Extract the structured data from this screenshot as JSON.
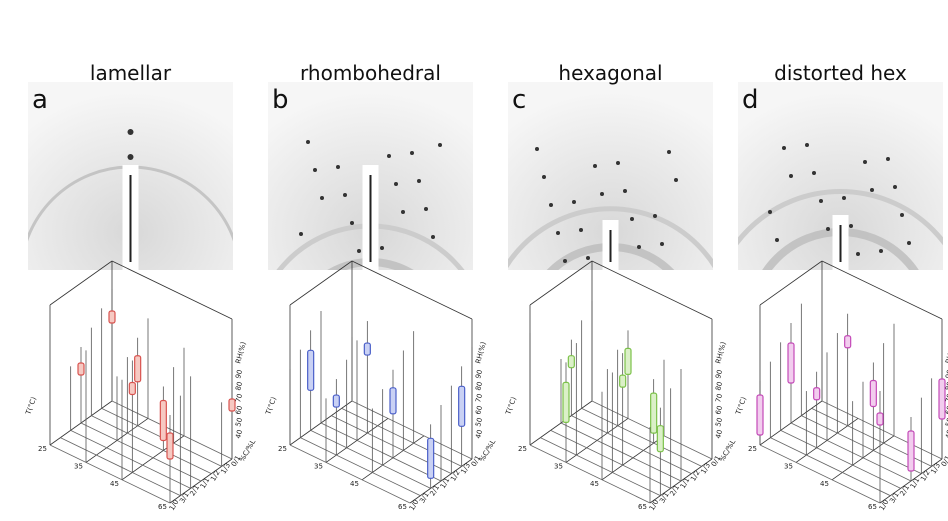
{
  "panels": [
    {
      "letter": "a",
      "title": "lamellar",
      "color": "#d9534f",
      "fill": "#f6c9c2"
    },
    {
      "letter": "b",
      "title": "rhombohedral",
      "color": "#4a5fc9",
      "fill": "#c9d1f4"
    },
    {
      "letter": "c",
      "title": "hexagonal",
      "color": "#7cc24a",
      "fill": "#dbf0c8"
    },
    {
      "letter": "d",
      "title": "distorted hex",
      "color": "#c44ab8",
      "fill": "#f2cdee"
    }
  ],
  "plot_axes": {
    "t_label": "T(°C)",
    "t_ticks": [
      "25",
      "35",
      "45",
      "65"
    ],
    "rh_label": "RH(%)",
    "rh_ticks": [
      "90",
      "80",
      "70",
      "60",
      "50",
      "40"
    ],
    "ratio_label": "%C/%L",
    "ratio_ticks": [
      "1/0",
      "3/1",
      "2/1",
      "1/1",
      "1/2",
      "1/3",
      "0/1"
    ]
  }
}
